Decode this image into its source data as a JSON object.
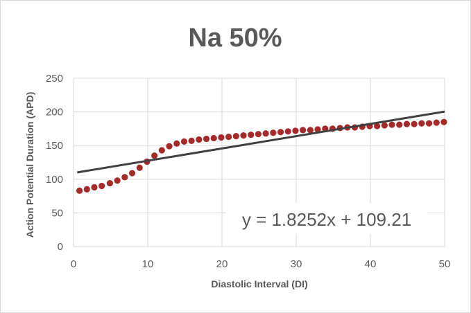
{
  "chart_data": {
    "type": "scatter",
    "title": "Na 50%",
    "xlabel": "Diastolic Interval (DI)",
    "ylabel": "Action Potential Duration (APD)",
    "xlim": [
      0,
      50
    ],
    "ylim": [
      0,
      250
    ],
    "x_ticks": [
      "0",
      "10",
      "20",
      "30",
      "40",
      "50"
    ],
    "y_ticks": [
      "0",
      "50",
      "100",
      "150",
      "200",
      "250"
    ],
    "grid": true,
    "legend": "none",
    "series": [
      {
        "color": "#a52a2a",
        "points": [
          [
            0.8,
            83
          ],
          [
            1.8,
            85
          ],
          [
            2.8,
            88
          ],
          [
            3.8,
            90
          ],
          [
            4.9,
            94
          ],
          [
            5.9,
            98
          ],
          [
            6.9,
            103
          ],
          [
            7.9,
            109
          ],
          [
            8.9,
            117
          ],
          [
            9.9,
            126
          ],
          [
            10.9,
            135
          ],
          [
            11.9,
            143
          ],
          [
            12.9,
            149
          ],
          [
            13.9,
            153
          ],
          [
            14.9,
            156
          ],
          [
            15.9,
            157
          ],
          [
            16.9,
            159
          ],
          [
            17.9,
            160
          ],
          [
            18.9,
            161
          ],
          [
            19.9,
            162
          ],
          [
            20.9,
            163
          ],
          [
            21.9,
            164
          ],
          [
            22.9,
            165
          ],
          [
            23.9,
            166
          ],
          [
            24.9,
            167
          ],
          [
            25.9,
            168
          ],
          [
            26.9,
            169
          ],
          [
            27.9,
            170
          ],
          [
            28.9,
            171
          ],
          [
            29.9,
            172
          ],
          [
            30.9,
            173
          ],
          [
            31.9,
            173
          ],
          [
            32.9,
            174
          ],
          [
            33.9,
            175
          ],
          [
            34.9,
            175
          ],
          [
            35.9,
            176
          ],
          [
            36.9,
            177
          ],
          [
            37.9,
            177
          ],
          [
            38.9,
            178
          ],
          [
            39.9,
            179
          ],
          [
            40.9,
            179
          ],
          [
            41.9,
            180
          ],
          [
            42.9,
            181
          ],
          [
            43.9,
            181
          ],
          [
            44.9,
            182
          ],
          [
            45.9,
            182
          ],
          [
            46.9,
            183
          ],
          [
            47.9,
            183
          ],
          [
            48.9,
            184
          ],
          [
            49.9,
            185
          ]
        ]
      }
    ],
    "trendline": {
      "type": "linear",
      "slope": 1.8252,
      "intercept": 109.21,
      "x_range": [
        0.5,
        50
      ],
      "color": "#404040",
      "equation": "y = 1.8252x + 109.21"
    },
    "colors": {
      "text": "#595959",
      "gridline": "#d9d9d9",
      "marker": "#a52a2a",
      "trendline": "#404040"
    }
  }
}
